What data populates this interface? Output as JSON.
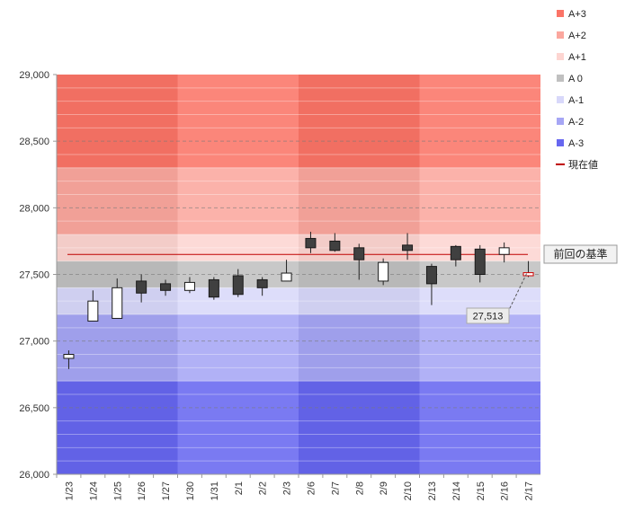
{
  "chart_data": {
    "type": "candlestick",
    "title": "",
    "xlabel": "",
    "ylabel": "",
    "ylim": [
      26000,
      29000
    ],
    "y_ticks": [
      26000,
      26500,
      27000,
      27500,
      28000,
      28500,
      29000
    ],
    "y_tick_labels": [
      "26,000",
      "26,500",
      "27,000",
      "27,500",
      "28,000",
      "28,500",
      "29,000"
    ],
    "grid": "horizontal dashed, every 500 major / 100 minor",
    "legend_position": "right",
    "bands": [
      {
        "name": "A+3",
        "from": 28300,
        "to": 29000,
        "color": "#fb7467"
      },
      {
        "name": "A+2",
        "from": 27800,
        "to": 28300,
        "color": "#fba79e"
      },
      {
        "name": "A+1",
        "from": 27600,
        "to": 27800,
        "color": "#fdd5d1"
      },
      {
        "name": "A 0",
        "from": 27400,
        "to": 27600,
        "color": "#c0c0c0"
      },
      {
        "name": "A-1",
        "from": 27200,
        "to": 27400,
        "color": "#d8d8fa"
      },
      {
        "name": "A-2",
        "from": 26700,
        "to": 27200,
        "color": "#a6a6f5"
      },
      {
        "name": "A-3",
        "from": 26000,
        "to": 26700,
        "color": "#6767f0"
      }
    ],
    "categories": [
      "1/23",
      "1/24",
      "1/25",
      "1/26",
      "1/27",
      "1/30",
      "1/31",
      "2/1",
      "2/2",
      "2/3",
      "2/6",
      "2/7",
      "2/8",
      "2/9",
      "2/10",
      "2/13",
      "2/14",
      "2/15",
      "2/16",
      "2/17"
    ],
    "week_groups": [
      [
        0,
        4
      ],
      [
        5,
        9
      ],
      [
        10,
        14
      ],
      [
        15,
        19
      ]
    ],
    "open": [
      26870,
      27150,
      27170,
      27450,
      27430,
      27380,
      27460,
      27490,
      27460,
      27450,
      27770,
      27750,
      27700,
      27450,
      27720,
      27560,
      27710,
      27690,
      27650,
      27490
    ],
    "close": [
      26900,
      27300,
      27400,
      27360,
      27380,
      27440,
      27330,
      27350,
      27400,
      27510,
      27700,
      27680,
      27610,
      27590,
      27680,
      27430,
      27610,
      27500,
      27700,
      27513
    ],
    "high": [
      26930,
      27380,
      27470,
      27500,
      27460,
      27480,
      27480,
      27540,
      27480,
      27610,
      27820,
      27810,
      27730,
      27620,
      27810,
      27580,
      27720,
      27720,
      27740,
      27600
    ],
    "low": [
      26790,
      27150,
      27170,
      27290,
      27340,
      27360,
      27310,
      27330,
      27340,
      27450,
      27660,
      27670,
      27460,
      27420,
      27610,
      27270,
      27560,
      27440,
      27590,
      27480
    ],
    "current_value_line": {
      "name": "現在値",
      "value": 27650,
      "color": "#c00000"
    },
    "annotations": [
      {
        "text": "前回の基準",
        "kind": "box"
      },
      {
        "text": "27,513",
        "kind": "callout",
        "category": "2/17",
        "value": 27513
      }
    ]
  }
}
